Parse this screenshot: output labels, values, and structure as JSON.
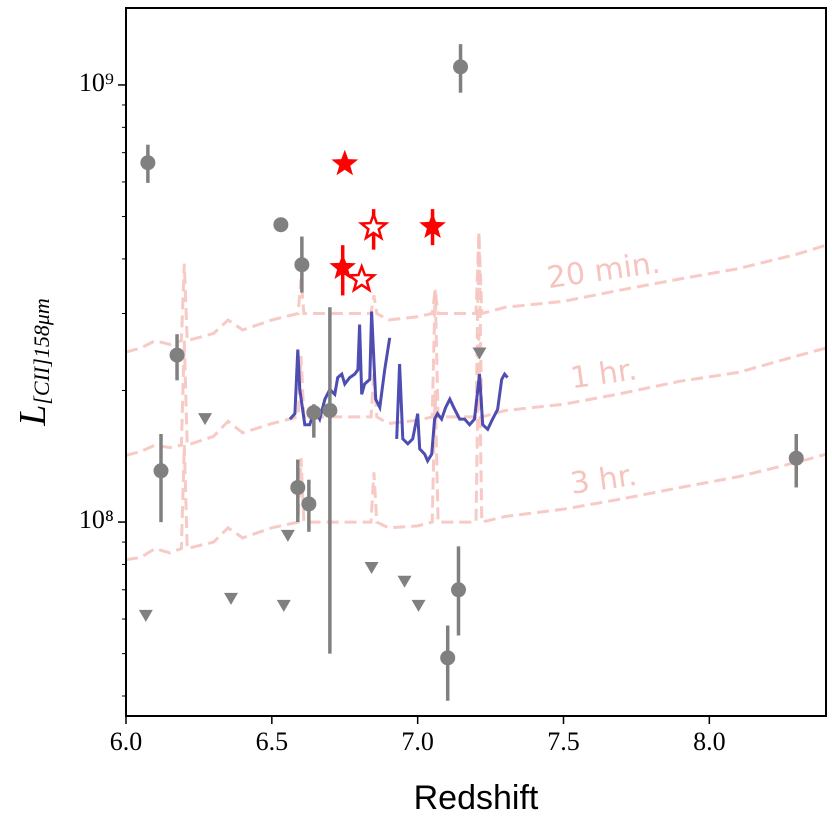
{
  "chart_data": {
    "type": "scatter",
    "xlabel": "Redshift",
    "ylabel": {
      "main": "L",
      "sub": "[CII]158μm"
    },
    "xlim": [
      6.0,
      8.4
    ],
    "ylim": [
      36000000.0,
      1500000000.0
    ],
    "yscale": "log",
    "xticks": [
      {
        "value": 6.0,
        "label": "6.0"
      },
      {
        "value": 6.5,
        "label": "6.5"
      },
      {
        "value": 7.0,
        "label": "7.0"
      },
      {
        "value": 7.5,
        "label": "7.5"
      },
      {
        "value": 8.0,
        "label": "8.0"
      }
    ],
    "yticks": [
      {
        "value": 100000000.0,
        "label": "10⁸"
      },
      {
        "value": 1000000000.0,
        "label": "10⁹"
      }
    ],
    "yminorticks": [
      40000000.0,
      50000000.0,
      60000000.0,
      70000000.0,
      80000000.0,
      90000000.0,
      200000000.0,
      300000000.0,
      400000000.0,
      500000000.0,
      600000000.0,
      700000000.0,
      800000000.0,
      900000000.0
    ],
    "series": [
      {
        "name": "20 min.",
        "marker": "dashed-line",
        "color": "#f6c4bf",
        "x": [
          6.0,
          6.05,
          6.1,
          6.15,
          6.19,
          6.2,
          6.21,
          6.3,
          6.35,
          6.4,
          6.5,
          6.59,
          6.6,
          6.61,
          6.7,
          6.8,
          6.84,
          6.85,
          6.86,
          6.9,
          7.0,
          7.05,
          7.06,
          7.07,
          7.1,
          7.2,
          7.21,
          7.22,
          7.3,
          7.5,
          7.7,
          7.9,
          8.1,
          8.3,
          8.4
        ],
        "values": [
          245000000.0,
          250000000.0,
          260000000.0,
          255000000.0,
          260000000.0,
          390000000.0,
          260000000.0,
          270000000.0,
          290000000.0,
          275000000.0,
          290000000.0,
          300000000.0,
          360000000.0,
          300000000.0,
          300000000.0,
          300000000.0,
          300000000.0,
          330000000.0,
          300000000.0,
          290000000.0,
          295000000.0,
          300000000.0,
          340000000.0,
          300000000.0,
          300000000.0,
          300000000.0,
          460000000.0,
          300000000.0,
          310000000.0,
          320000000.0,
          340000000.0,
          360000000.0,
          380000000.0,
          410000000.0,
          430000000.0
        ]
      },
      {
        "name": "1 hr.",
        "marker": "dashed-line",
        "color": "#f6c4bf",
        "x": [
          6.0,
          6.05,
          6.1,
          6.15,
          6.19,
          6.2,
          6.21,
          6.3,
          6.35,
          6.4,
          6.5,
          6.59,
          6.6,
          6.61,
          6.7,
          6.8,
          6.84,
          6.85,
          6.86,
          6.9,
          7.0,
          7.05,
          7.06,
          7.07,
          7.1,
          7.2,
          7.21,
          7.22,
          7.3,
          7.5,
          7.7,
          7.9,
          8.1,
          8.3,
          8.4
        ],
        "values": [
          142000000.0,
          145000000.0,
          150000000.0,
          148000000.0,
          150000000.0,
          260000000.0,
          150000000.0,
          157000000.0,
          170000000.0,
          160000000.0,
          168000000.0,
          174000000.0,
          240000000.0,
          174000000.0,
          174000000.0,
          174000000.0,
          174000000.0,
          220000000.0,
          174000000.0,
          168000000.0,
          171000000.0,
          174000000.0,
          340000000.0,
          174000000.0,
          174000000.0,
          174000000.0,
          460000000.0,
          174000000.0,
          180000000.0,
          186000000.0,
          197000000.0,
          210000000.0,
          220000000.0,
          240000000.0,
          250000000.0
        ]
      },
      {
        "name": "3 hr.",
        "marker": "dashed-line",
        "color": "#f6c4bf",
        "x": [
          6.0,
          6.05,
          6.1,
          6.15,
          6.19,
          6.2,
          6.21,
          6.3,
          6.35,
          6.4,
          6.5,
          6.59,
          6.6,
          6.61,
          6.7,
          6.8,
          6.84,
          6.85,
          6.86,
          6.9,
          7.0,
          7.05,
          7.06,
          7.07,
          7.1,
          7.2,
          7.21,
          7.22,
          7.3,
          7.5,
          7.7,
          7.9,
          8.1,
          8.3,
          8.4
        ],
        "values": [
          82000000.0,
          83000000.0,
          87000000.0,
          85000000.0,
          87000000.0,
          150000000.0,
          87000000.0,
          90000000.0,
          97000000.0,
          92000000.0,
          97000000.0,
          100000000.0,
          140000000.0,
          100000000.0,
          100000000.0,
          100000000.0,
          100000000.0,
          130000000.0,
          100000000.0,
          97000000.0,
          98000000.0,
          100000000.0,
          200000000.0,
          100000000.0,
          100000000.0,
          100000000.0,
          270000000.0,
          100000000.0,
          103000000.0,
          107000000.0,
          113000000.0,
          120000000.0,
          127000000.0,
          137000000.0,
          143000000.0
        ]
      },
      {
        "marker": "line",
        "color": "#3a3aaa",
        "x": [
          6.562,
          6.579,
          6.589,
          6.596,
          6.613,
          6.63,
          6.647,
          6.664,
          6.682,
          6.699,
          6.716,
          6.726,
          6.74,
          6.75,
          6.767,
          6.784,
          6.795,
          6.801,
          6.808,
          6.818,
          6.836,
          6.842,
          6.856,
          6.87,
          6.887,
          6.904,
          6.915,
          6.928,
          6.938,
          6.949,
          6.966,
          6.983,
          7.0,
          7.007,
          7.024,
          7.034,
          7.048,
          7.058,
          7.068,
          7.082,
          7.096,
          7.11,
          7.127,
          7.144,
          7.161,
          7.178,
          7.195,
          7.212,
          7.223,
          7.24,
          7.257,
          7.274,
          7.288,
          7.298,
          7.308
        ],
        "values": [
          172000000.0,
          177000000.0,
          248000000.0,
          201000000.0,
          167000000.0,
          167000000.0,
          181000000.0,
          172000000.0,
          191000000.0,
          201000000.0,
          196000000.0,
          214000000.0,
          218000000.0,
          207000000.0,
          214000000.0,
          218000000.0,
          223000000.0,
          283000000.0,
          196000000.0,
          207000000.0,
          212000000.0,
          303000000.0,
          191000000.0,
          183000000.0,
          223000000.0,
          264000000.0,
          null,
          155000000.0,
          230000000.0,
          155000000.0,
          151000000.0,
          155000000.0,
          177000000.0,
          147000000.0,
          143000000.0,
          138000000.0,
          143000000.0,
          172000000.0,
          177000000.0,
          172000000.0,
          183000000.0,
          191000000.0,
          181000000.0,
          172000000.0,
          172000000.0,
          167000000.0,
          172000000.0,
          218000000.0,
          167000000.0,
          163000000.0,
          172000000.0,
          181000000.0,
          212000000.0,
          218000000.0,
          214000000.0
        ]
      },
      {
        "marker": "circle",
        "color": "#808080",
        "x": [
          6.075,
          6.531,
          6.603,
          6.175,
          6.12,
          6.589,
          6.627,
          6.699,
          6.644,
          7.147,
          7.14,
          7.103,
          8.298
        ],
        "values": [
          664000000.0,
          479000000.0,
          388000000.0,
          241000000.0,
          131000000.0,
          120000000.0,
          110000000.0,
          180000000.0,
          178000000.0,
          1100000000.0,
          70000000.0,
          48900000.0,
          140000000.0
        ],
        "error_low": [
          597000000.0,
          null,
          335000000.0,
          211000000.0,
          100000000.0,
          100000000.0,
          95000000.0,
          50000000.0,
          156000000.0,
          960000000.0,
          55000000.0,
          39000000.0,
          120000000.0
        ],
        "error_high": [
          730000000.0,
          null,
          450000000.0,
          269000000.0,
          159000000.0,
          139000000.0,
          125000000.0,
          310000000.0,
          186000000.0,
          1240000000.0,
          88000000.0,
          58000000.0,
          159000000.0
        ]
      },
      {
        "marker": "triangle-down",
        "color": "#808080",
        "x": [
          6.068,
          6.271,
          6.36,
          6.541,
          6.555,
          6.842,
          6.955,
          7.003,
          7.212
        ],
        "values": [
          61000000.0,
          172000000.0,
          66700000.0,
          64300000.0,
          93000000.0,
          78500000.0,
          73000000.0,
          64300000.0,
          243000000.0
        ]
      },
      {
        "marker": "star",
        "color": "#ff0000",
        "x": [
          6.75,
          6.743,
          7.051
        ],
        "values": [
          660000000.0,
          382000000.0,
          474000000.0
        ],
        "error_low": [
          null,
          330000000.0,
          430000000.0
        ],
        "error_high": [
          null,
          430000000.0,
          520000000.0
        ]
      },
      {
        "marker": "star-open",
        "color": "#ff0000",
        "x": [
          6.849,
          6.808
        ],
        "values": [
          472000000.0,
          359000000.0
        ],
        "error_low": [
          420000000.0,
          null
        ],
        "error_high": [
          520000000.0,
          null
        ]
      }
    ]
  }
}
